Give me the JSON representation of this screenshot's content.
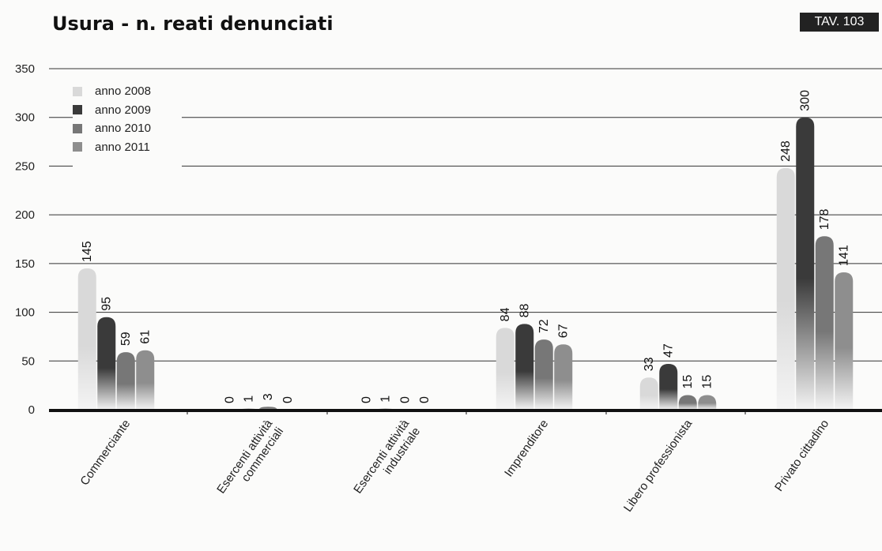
{
  "header": {
    "title": "Usura - n. reati denunciati",
    "badge": "TAV. 103"
  },
  "chart_data": {
    "type": "bar",
    "title": "Usura - n. reati denunciati",
    "categories": [
      "Commerciante",
      "Esercenti attività commerciali",
      "Esercenti attività industriale",
      "Imprenditore",
      "Libero professionista",
      "Privato cittadino"
    ],
    "category_lines": [
      [
        "Commerciante"
      ],
      [
        "Esercenti attività",
        "commerciali"
      ],
      [
        "Esercenti attività",
        "industriale"
      ],
      [
        "Imprenditore"
      ],
      [
        "Libero professionista"
      ],
      [
        "Privato cittadino"
      ]
    ],
    "series": [
      {
        "name": "anno 2008",
        "color": "#d9d9d9",
        "values": [
          145,
          0,
          0,
          84,
          33,
          248
        ]
      },
      {
        "name": "anno 2009",
        "color": "#3a3a3a",
        "values": [
          95,
          1,
          1,
          88,
          47,
          300
        ]
      },
      {
        "name": "anno 2010",
        "color": "#777777",
        "values": [
          59,
          3,
          0,
          72,
          15,
          178
        ]
      },
      {
        "name": "anno 2011",
        "color": "#8e8e8e",
        "values": [
          61,
          0,
          0,
          67,
          15,
          141
        ]
      }
    ],
    "ylim": [
      0,
      350
    ],
    "yticks": [
      0,
      50,
      100,
      150,
      200,
      250,
      300,
      350
    ],
    "grid": true,
    "legend_position": "top-left"
  }
}
